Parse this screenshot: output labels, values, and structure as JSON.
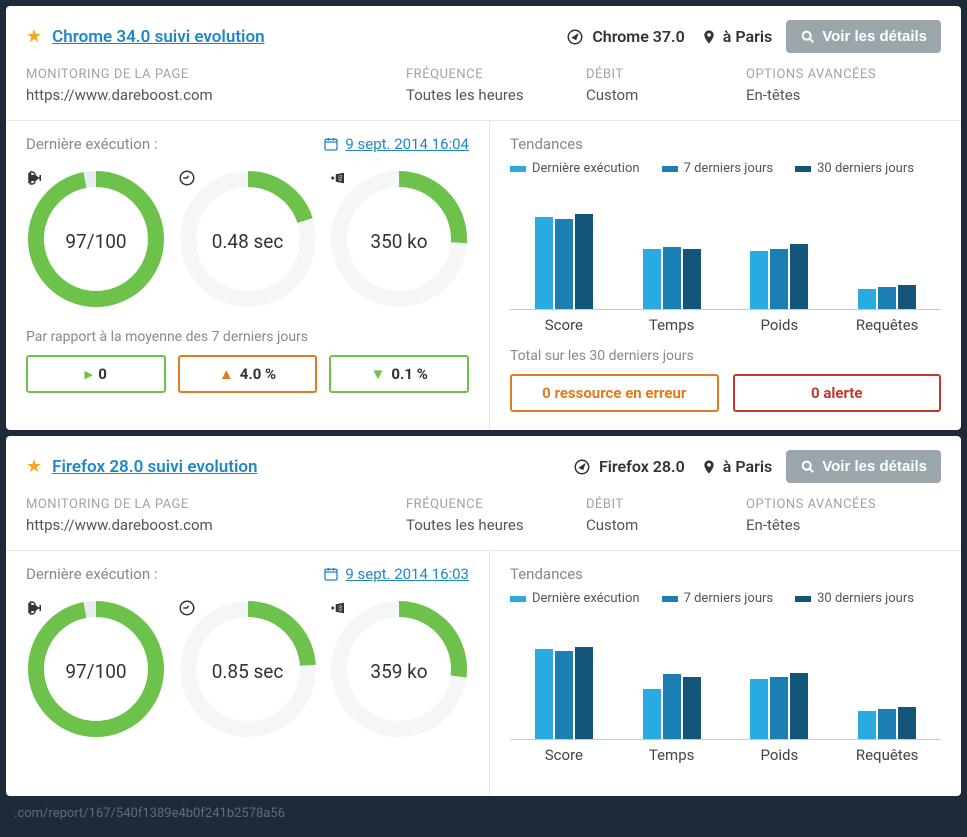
{
  "colors": {
    "link": "#1e88c7",
    "star": "#f5a623",
    "green": "#6cc24a",
    "grey_ring": "#e9ecee",
    "orange": "#e07b1f",
    "red": "#c0392b",
    "bar1": "#29abe2",
    "bar2": "#1b7fb3",
    "bar3": "#14567a"
  },
  "labels": {
    "monitoring": "MONITORING DE LA PAGE",
    "frequency": "FRÉQUENCE",
    "debit": "DÉBIT",
    "options": "OPTIONS AVANCÉES",
    "last_exec": "Dernière exécution :",
    "compare": "Par rapport à la moyenne des 7 derniers jours",
    "trends": "Tendances",
    "legend1": "Dernière exécution",
    "legend2": "7 derniers jours",
    "legend3": "30 derniers jours",
    "total30": "Total sur les 30 derniers jours",
    "details": "Voir les détails"
  },
  "chart_categories": [
    "Score",
    "Temps",
    "Poids",
    "Requêtes"
  ],
  "cards": [
    {
      "title": "Chrome 34.0 suivi evolution",
      "browser": "Chrome 37.0",
      "location": "à Paris",
      "url": "https://www.dareboost.com",
      "frequency": "Toutes les heures",
      "debit": "Custom",
      "options": "En-têtes",
      "exec_date": "9 sept. 2014 16:04",
      "gauges": [
        {
          "icon": "trophy",
          "value": "97/100",
          "pct": 97,
          "color": "#6cc24a",
          "bg": "#e9ecee"
        },
        {
          "icon": "clock",
          "value": "0.48 sec",
          "pct": 20,
          "color": "#6cc24a",
          "bg": "#f5f6f7"
        },
        {
          "icon": "weight",
          "value": "350 ko",
          "pct": 26,
          "color": "#6cc24a",
          "bg": "#f5f6f7"
        }
      ],
      "compare": [
        {
          "arrow": "right",
          "text": "0",
          "color": "#6cc24a"
        },
        {
          "arrow": "up",
          "text": "4.0 %",
          "color": "#e07b1f"
        },
        {
          "arrow": "down",
          "text": "0.1 %",
          "color": "#6cc24a"
        }
      ],
      "bars": [
        [
          92,
          90,
          95
        ],
        [
          60,
          62,
          60
        ],
        [
          58,
          60,
          65
        ],
        [
          20,
          22,
          24
        ]
      ],
      "alerts": [
        {
          "text": "0 ressource en erreur",
          "color": "#e07b1f"
        },
        {
          "text": "0 alerte",
          "color": "#c0392b"
        }
      ]
    },
    {
      "title": "Firefox 28.0 suivi evolution",
      "browser": "Firefox 28.0",
      "location": "à Paris",
      "url": "https://www.dareboost.com",
      "frequency": "Toutes les heures",
      "debit": "Custom",
      "options": "En-têtes",
      "exec_date": "9 sept. 2014 16:03",
      "gauges": [
        {
          "icon": "trophy",
          "value": "97/100",
          "pct": 97,
          "color": "#6cc24a",
          "bg": "#e9ecee"
        },
        {
          "icon": "clock",
          "value": "0.85 sec",
          "pct": 24,
          "color": "#6cc24a",
          "bg": "#f5f6f7"
        },
        {
          "icon": "weight",
          "value": "359 ko",
          "pct": 27,
          "color": "#6cc24a",
          "bg": "#f5f6f7"
        }
      ],
      "compare": [],
      "bars": [
        [
          90,
          88,
          92
        ],
        [
          50,
          65,
          62
        ],
        [
          60,
          62,
          66
        ],
        [
          28,
          30,
          32
        ]
      ],
      "alerts": []
    }
  ],
  "footer_path": ".com/report/167/540f1389e4b0f241b2578a56"
}
